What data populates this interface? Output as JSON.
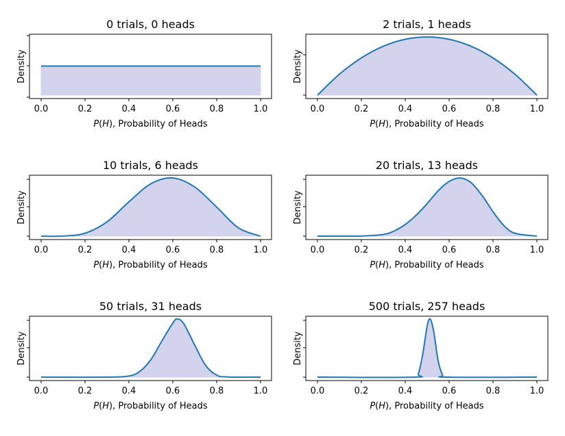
{
  "chart_data": [
    {
      "type": "area",
      "title": "0 trials, 0 heads",
      "trials": 0,
      "heads": 0,
      "xlabel_math": "P(H)",
      "xlabel_text": ", Probability of Heads",
      "ylabel": "Density",
      "xlim": [
        0,
        1
      ],
      "x_ticks": [
        "0.0",
        "0.2",
        "0.4",
        "0.6",
        "0.8",
        "1.0"
      ],
      "series": [
        {
          "x": [
            0,
            1
          ],
          "y": [
            1.0,
            1.0
          ]
        }
      ]
    },
    {
      "type": "area",
      "title": "2 trials, 1 heads",
      "trials": 2,
      "heads": 1,
      "xlabel_math": "P(H)",
      "xlabel_text": ", Probability of Heads",
      "ylabel": "Density",
      "xlim": [
        0,
        1
      ],
      "x_ticks": [
        "0.0",
        "0.2",
        "0.4",
        "0.6",
        "0.8",
        "1.0"
      ],
      "series": [
        {
          "x": [
            0.0,
            0.1,
            0.2,
            0.3,
            0.4,
            0.5,
            0.6,
            0.7,
            0.8,
            0.9,
            1.0
          ],
          "y": [
            0.0,
            0.54,
            0.96,
            1.26,
            1.44,
            1.5,
            1.44,
            1.26,
            0.96,
            0.54,
            0.0
          ]
        }
      ]
    },
    {
      "type": "area",
      "title": "10 trials, 6 heads",
      "trials": 10,
      "heads": 6,
      "xlabel_math": "P(H)",
      "xlabel_text": ", Probability of Heads",
      "ylabel": "Density",
      "xlim": [
        0,
        1
      ],
      "x_ticks": [
        "0.0",
        "0.2",
        "0.4",
        "0.6",
        "0.8",
        "1.0"
      ],
      "series": [
        {
          "x": [
            0.0,
            0.1,
            0.2,
            0.3,
            0.4,
            0.5,
            0.6,
            0.7,
            0.8,
            0.9,
            1.0
          ],
          "y": [
            0.0,
            0.0016,
            0.05,
            0.245,
            0.59,
            0.9,
            1.0,
            0.845,
            0.5,
            0.14,
            0.0
          ]
        }
      ]
    },
    {
      "type": "area",
      "title": "20 trials, 13 heads",
      "trials": 20,
      "heads": 13,
      "xlabel_math": "P(H)",
      "xlabel_text": ", Probability of Heads",
      "ylabel": "Density",
      "xlim": [
        0,
        1
      ],
      "x_ticks": [
        "0.0",
        "0.2",
        "0.4",
        "0.6",
        "0.8",
        "1.0"
      ],
      "series": [
        {
          "x": [
            0.0,
            0.1,
            0.2,
            0.3,
            0.35,
            0.4,
            0.45,
            0.5,
            0.55,
            0.6,
            0.65,
            0.7,
            0.75,
            0.8,
            0.85,
            0.9,
            1.0
          ],
          "y": [
            0.0,
            0.0,
            0.002,
            0.03,
            0.09,
            0.2,
            0.36,
            0.56,
            0.78,
            0.94,
            1.0,
            0.92,
            0.7,
            0.42,
            0.18,
            0.05,
            0.0
          ]
        }
      ]
    },
    {
      "type": "area",
      "title": "50 trials, 31 heads",
      "trials": 50,
      "heads": 31,
      "xlabel_math": "P(H)",
      "xlabel_text": ", Probability of Heads",
      "ylabel": "Density",
      "xlim": [
        0,
        1
      ],
      "x_ticks": [
        "0.0",
        "0.2",
        "0.4",
        "0.6",
        "0.8",
        "1.0"
      ],
      "series": [
        {
          "x": [
            0.0,
            0.3,
            0.4,
            0.45,
            0.5,
            0.55,
            0.6,
            0.62,
            0.65,
            0.7,
            0.75,
            0.8,
            0.85,
            1.0
          ],
          "y": [
            0.0,
            0.0,
            0.02,
            0.1,
            0.3,
            0.62,
            0.93,
            1.0,
            0.92,
            0.55,
            0.2,
            0.035,
            0.003,
            0.0
          ]
        }
      ]
    },
    {
      "type": "area",
      "title": "500 trials, 257 heads",
      "trials": 500,
      "heads": 257,
      "xlabel_math": "P(H)",
      "xlabel_text": ", Probability of Heads",
      "ylabel": "Density",
      "xlim": [
        0,
        1
      ],
      "x_ticks": [
        "0.0",
        "0.2",
        "0.4",
        "0.6",
        "0.8",
        "1.0"
      ],
      "series": [
        {
          "x": [
            0.0,
            0.44,
            0.46,
            0.48,
            0.5,
            0.514,
            0.53,
            0.55,
            0.57,
            0.59,
            1.0
          ],
          "y": [
            0.0,
            0.0,
            0.06,
            0.4,
            0.88,
            1.0,
            0.78,
            0.28,
            0.04,
            0.0,
            0.0
          ]
        }
      ]
    }
  ],
  "colors": {
    "line": "#1f77b4",
    "fill": "#d3d3ed",
    "axes": "#000000",
    "background": "#ffffff"
  }
}
